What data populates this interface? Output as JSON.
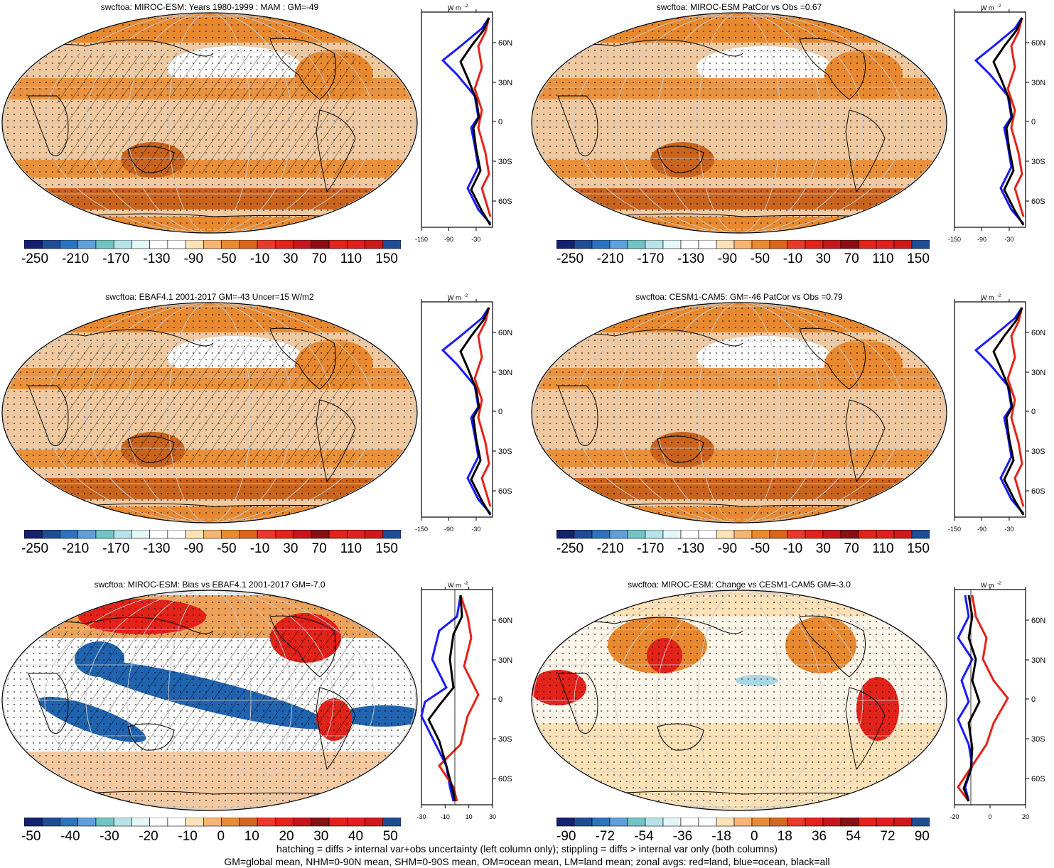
{
  "colors": {
    "map_ocean_base": "#f0c9a0",
    "map_orange": "#e8892f",
    "map_dark_orange": "#c9641e",
    "map_white": "#ffffff",
    "map_red": "#e2231a",
    "map_blue": "#2064b0",
    "map_light_blue": "#a9d8e2",
    "land_line": "#e2231a",
    "ocean_line": "#1a1aff",
    "all_line": "#000000"
  },
  "colorbar_full": {
    "colors": [
      "#15206e",
      "#1f4c97",
      "#2b73c1",
      "#5ea0dc",
      "#70c4c4",
      "#b7e3e8",
      "#e4f6f6",
      "#ffffff",
      "#ffffff",
      "#fde2b8",
      "#f7b46e",
      "#ec8a32",
      "#d9661a",
      "#e83a2a",
      "#e2231a",
      "#c4161c",
      "#8b0e14",
      "#e2231a",
      "#e02020",
      "#cc1a1a",
      "#1f4c97"
    ],
    "labels": [
      "-250",
      "-210",
      "-170",
      "-130",
      "-90",
      "-50",
      "-10",
      "30",
      "70",
      "110",
      "150"
    ]
  },
  "colorbar_bias": {
    "colors": [
      "#15206e",
      "#1f4c97",
      "#2b73c1",
      "#5ea0dc",
      "#70c4c4",
      "#b7e3e8",
      "#e4f6f6",
      "#ffffff",
      "#ffffff",
      "#fde2b8",
      "#f7b46e",
      "#ec8a32",
      "#d9661a",
      "#e83a2a",
      "#e2231a",
      "#c4161c",
      "#8b0e14",
      "#e2231a",
      "#e02020",
      "#cc1a1a",
      "#1f4c97"
    ],
    "labels": [
      "-50",
      "-40",
      "-30",
      "-20",
      "-10",
      "0",
      "10",
      "20",
      "30",
      "40",
      "50"
    ]
  },
  "colorbar_change": {
    "colors": [
      "#15206e",
      "#1f4c97",
      "#2b73c1",
      "#5ea0dc",
      "#70c4c4",
      "#b7e3e8",
      "#e4f6f6",
      "#ffffff",
      "#ffffff",
      "#fde2b8",
      "#f7b46e",
      "#ec8a32",
      "#d9661a",
      "#e83a2a",
      "#e2231a",
      "#c4161c",
      "#8b0e14",
      "#e2231a",
      "#e02020",
      "#cc1a1a",
      "#1f4c97"
    ],
    "labels": [
      "-90",
      "-72",
      "-54",
      "-36",
      "-18",
      "0",
      "18",
      "36",
      "54",
      "72",
      "90"
    ]
  },
  "lat_labels": [
    "60N",
    "30N",
    "0",
    "30S",
    "60S"
  ],
  "unit_label": "W m",
  "unit_sup": "-2",
  "panels": [
    {
      "id": "p1",
      "title": "swcftoa: MIROC-ESM: Years 1980-1999 : MAM : GM=-49",
      "cbar": "colorbar_full",
      "xticks": [
        "-150",
        "-90",
        "-30"
      ],
      "hatch": true,
      "stipple": true,
      "style": "clim"
    },
    {
      "id": "p2",
      "title": "swcftoa: MIROC-ESM PatCor vs Obs =0.67",
      "cbar": "colorbar_full",
      "xticks": [
        "-150",
        "-90",
        "-30"
      ],
      "hatch": false,
      "stipple": true,
      "style": "clim"
    },
    {
      "id": "p3",
      "title": "swcftoa: EBAF4.1 2001-2017 GM=-43 Uncer=15 W/m2",
      "cbar": "colorbar_full",
      "xticks": [
        "-150",
        "-90",
        "-30"
      ],
      "hatch": true,
      "stipple": true,
      "style": "clim"
    },
    {
      "id": "p4",
      "title": "swcftoa: CESM1-CAM5: GM=-46 PatCor vs Obs =0.79",
      "cbar": "colorbar_full",
      "xticks": [
        "-150",
        "-90",
        "-30"
      ],
      "hatch": false,
      "stipple": true,
      "style": "clim"
    },
    {
      "id": "p5",
      "title": "swcftoa: MIROC-ESM: Bias vs EBAF4.1 2001-2017 GM=-7.0",
      "cbar": "colorbar_bias",
      "xticks": [
        "-30",
        "-10",
        "10",
        "30"
      ],
      "hatch": true,
      "stipple": true,
      "style": "bias"
    },
    {
      "id": "p6",
      "title": "swcftoa: MIROC-ESM: Change vs CESM1-CAM5 GM=-3.0",
      "cbar": "colorbar_change",
      "xticks": [
        "-20",
        "0",
        "20"
      ],
      "hatch": false,
      "stipple": true,
      "style": "change"
    }
  ],
  "footnote": {
    "line1": "hatching = diffs > internal var+obs uncertainty (left column only); stippling = diffs > internal var only (both columns)",
    "line2": "GM=global mean, NHM=0-90N mean, SHM=0-90S mean, OM=ocean mean, LM=land mean; zonal avgs: red=land, blue=ocean, black=all"
  }
}
